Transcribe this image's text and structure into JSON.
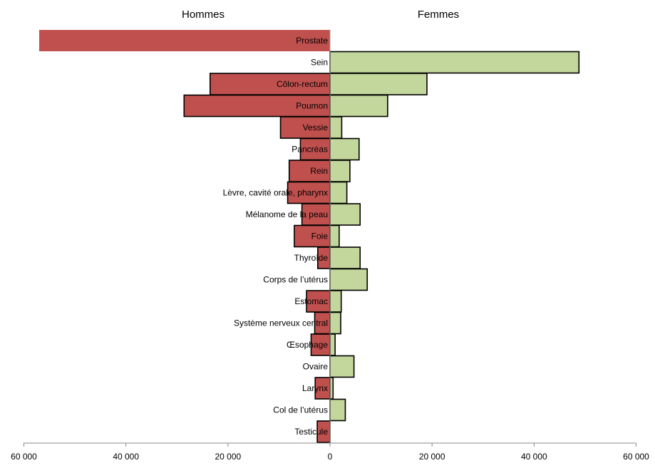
{
  "chart_data": {
    "type": "bar",
    "orientation": "horizontal",
    "layout": "diverging",
    "categories": [
      "Prostate",
      "Sein",
      "Côlon-rectum",
      "Poumon",
      "Vessie",
      "Pancréas",
      "Rein",
      "Lèvre, cavité orale, pharynx",
      "Mélanome de la peau",
      "Foie",
      "Thyroïde",
      "Corps de l’utérus",
      "Estomac",
      "Système nerveux central",
      "Œsophage",
      "Ovaire",
      "Larynx",
      "Col de l’utérus",
      "Testicule"
    ],
    "series": [
      {
        "name": "Hommes",
        "color": "#c0504d",
        "values": [
          57000,
          0,
          23500,
          28600,
          9700,
          5800,
          8000,
          8300,
          5500,
          7000,
          2400,
          0,
          4600,
          3000,
          3700,
          0,
          2900,
          0,
          2500
        ]
      },
      {
        "name": "Femmes",
        "color": "#c3d69b",
        "values": [
          0,
          48800,
          19000,
          11300,
          2300,
          5700,
          3900,
          3300,
          5900,
          1800,
          5900,
          7300,
          2200,
          2100,
          1000,
          4700,
          600,
          3000,
          0
        ]
      }
    ],
    "xlim": [
      -60000,
      60000
    ],
    "xticks": [
      -60000,
      -40000,
      -20000,
      0,
      20000,
      40000,
      60000
    ],
    "xtick_labels": [
      "60 000",
      "40 000",
      "20 000",
      "0",
      "20 000",
      "40 000",
      "60 000"
    ],
    "grid": false,
    "legend": "none"
  }
}
